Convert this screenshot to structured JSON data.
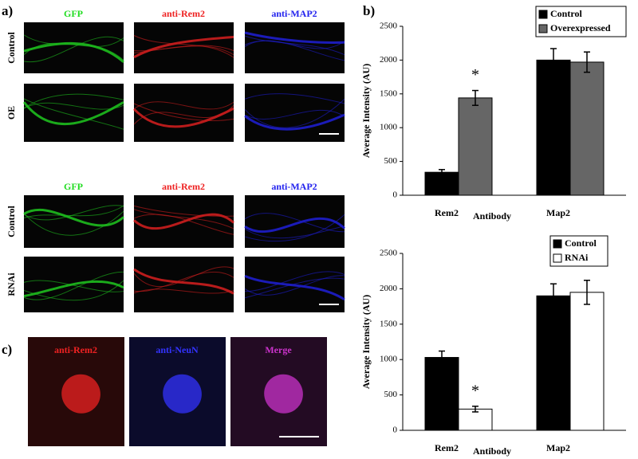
{
  "panel_a": {
    "label": "a)",
    "columns": [
      "GFP",
      "anti-Rem2",
      "anti-MAP2"
    ],
    "colors": [
      "#22dd22",
      "#ee2222",
      "#2222ee"
    ],
    "rows": [
      "Control",
      "OE"
    ]
  },
  "panel_a2": {
    "columns": [
      "GFP",
      "anti-Rem2",
      "anti-MAP2"
    ],
    "colors": [
      "#22dd22",
      "#ee2222",
      "#2222ee"
    ],
    "rows": [
      "Control",
      "RNAi"
    ]
  },
  "panel_b": {
    "label": "b)"
  },
  "panel_c": {
    "label": "c)",
    "columns": [
      "anti-Rem2",
      "anti-NeuN",
      "Merge"
    ],
    "colors": [
      "#ee2222",
      "#3333ff",
      "#cc33cc"
    ]
  },
  "chart_data": [
    {
      "type": "bar",
      "categories": [
        "Rem2",
        "Map2"
      ],
      "xlabel": "Antibody",
      "ylabel": "Average Intensity (AU)",
      "series": [
        {
          "name": "Control",
          "color": "#000000",
          "values": [
            340,
            2000
          ],
          "errors": [
            40,
            170
          ]
        },
        {
          "name": "Overexpressed",
          "color": "#666666",
          "values": [
            1440,
            1970
          ],
          "errors": [
            110,
            150
          ]
        }
      ],
      "annotation": "*",
      "ylim": [
        0,
        2500
      ],
      "yticks": [
        0,
        500,
        1000,
        1500,
        2000,
        2500
      ],
      "grid": false,
      "legend": "upper right"
    },
    {
      "type": "bar",
      "categories": [
        "Rem2",
        "Map2"
      ],
      "xlabel": "Antibody",
      "ylabel": "Average Intensity (AU)",
      "series": [
        {
          "name": "Control",
          "color": "#000000",
          "values": [
            1030,
            1900
          ],
          "errors": [
            90,
            170
          ]
        },
        {
          "name": "RNAi",
          "color": "#ffffff",
          "values": [
            300,
            1950
          ],
          "errors": [
            40,
            170
          ]
        }
      ],
      "annotation": "*",
      "ylim": [
        0,
        2500
      ],
      "yticks": [
        0,
        500,
        1000,
        1500,
        2000,
        2500
      ],
      "grid": false,
      "legend": "upper right"
    }
  ]
}
